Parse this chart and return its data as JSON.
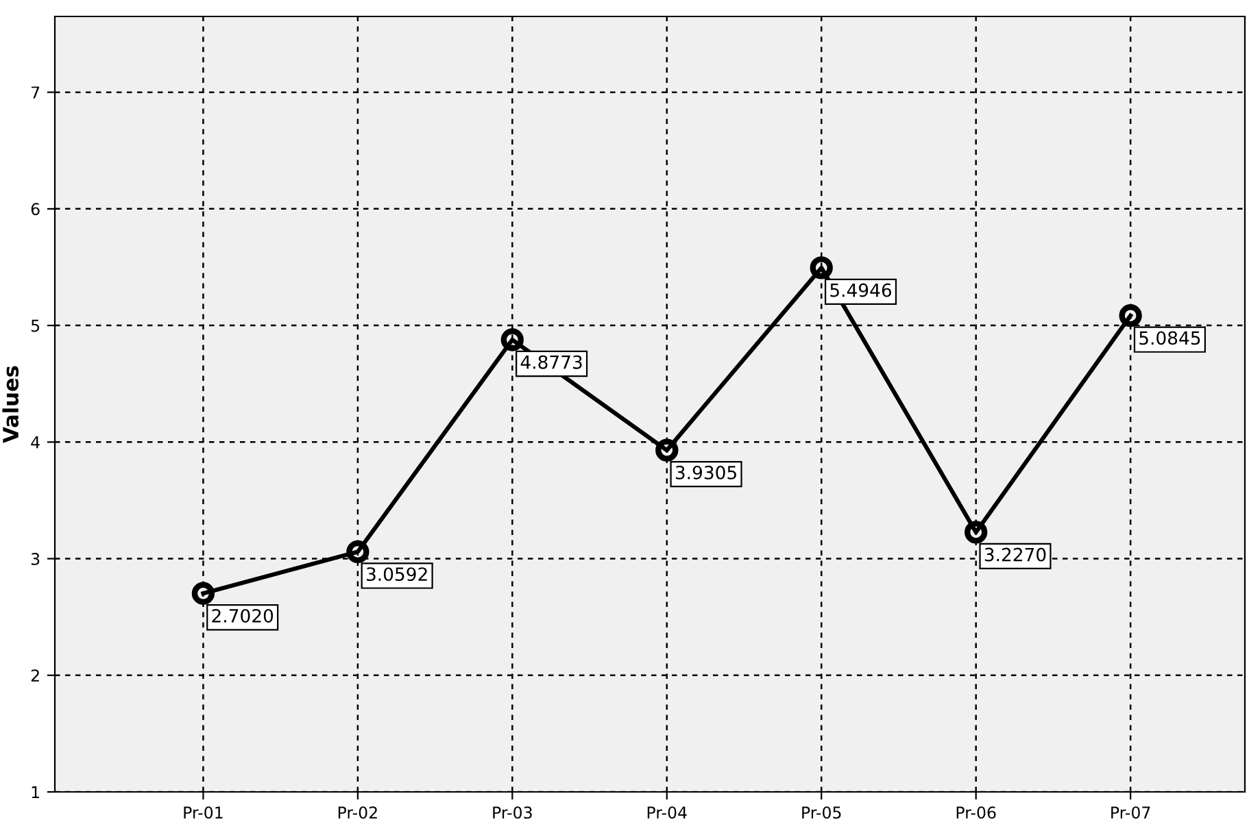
{
  "chart_data": {
    "type": "line",
    "ylabel": "Values",
    "categories": [
      "Pr-01",
      "Pr-02",
      "Pr-03",
      "Pr-04",
      "Pr-05",
      "Pr-06",
      "Pr-07"
    ],
    "series": [
      {
        "color": "#000000",
        "values": [
          2.702,
          3.0592,
          4.8773,
          3.9305,
          5.4946,
          3.227,
          5.0845
        ],
        "value_labels": [
          "2.7020",
          "3.0592",
          "4.8773",
          "3.9305",
          "5.4946",
          "3.2270",
          "5.0845"
        ]
      }
    ],
    "ylim": [
      1,
      7.65
    ],
    "yticks": [
      1,
      2,
      3,
      4,
      5,
      6,
      7
    ],
    "grid": true,
    "marker": "circle",
    "line_style": "solid"
  }
}
